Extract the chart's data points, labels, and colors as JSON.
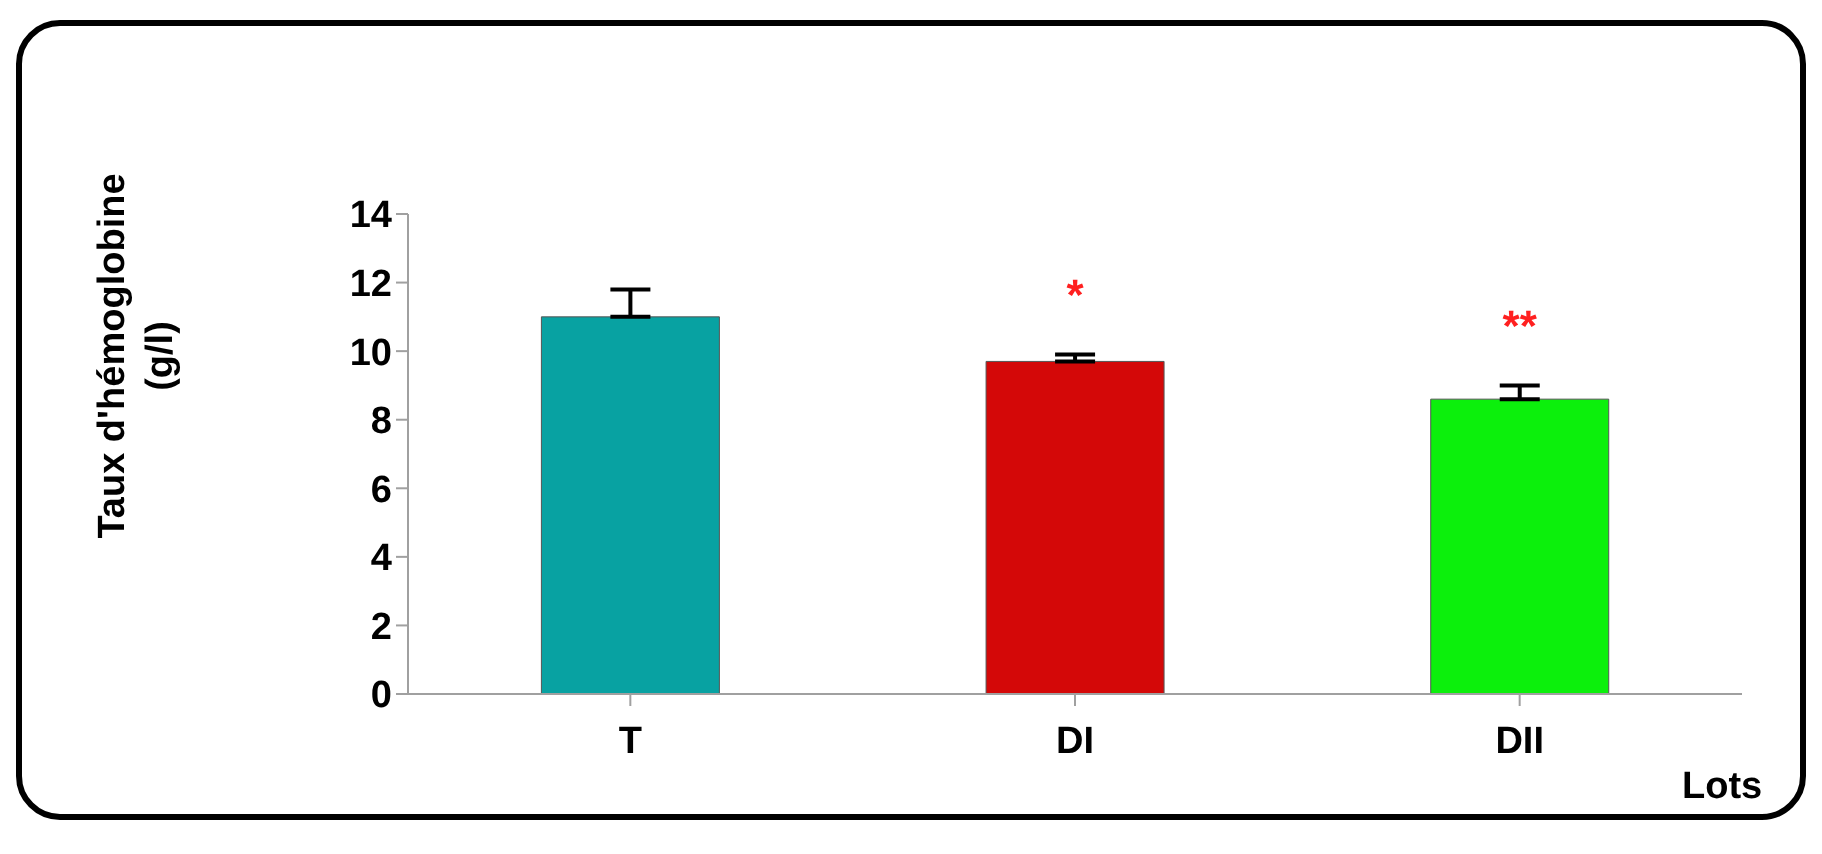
{
  "chart_data": {
    "type": "bar",
    "xlabel": "Lots",
    "ylabel": "Taux d'hémoglobine (g/l)",
    "categories": [
      "T",
      "DI",
      "DII"
    ],
    "values": [
      11.0,
      9.7,
      8.6
    ],
    "colors": [
      "#08a2a2",
      "#d40808",
      "#0cf00c"
    ],
    "errors": [
      [
        11.0,
        11.8
      ],
      [
        9.7,
        9.9
      ],
      [
        8.6,
        9.0
      ]
    ],
    "ylim": [
      0,
      14
    ],
    "yticks": [
      0,
      2,
      4,
      6,
      8,
      10,
      12,
      14
    ],
    "annotations": [
      "*",
      "**"
    ]
  }
}
